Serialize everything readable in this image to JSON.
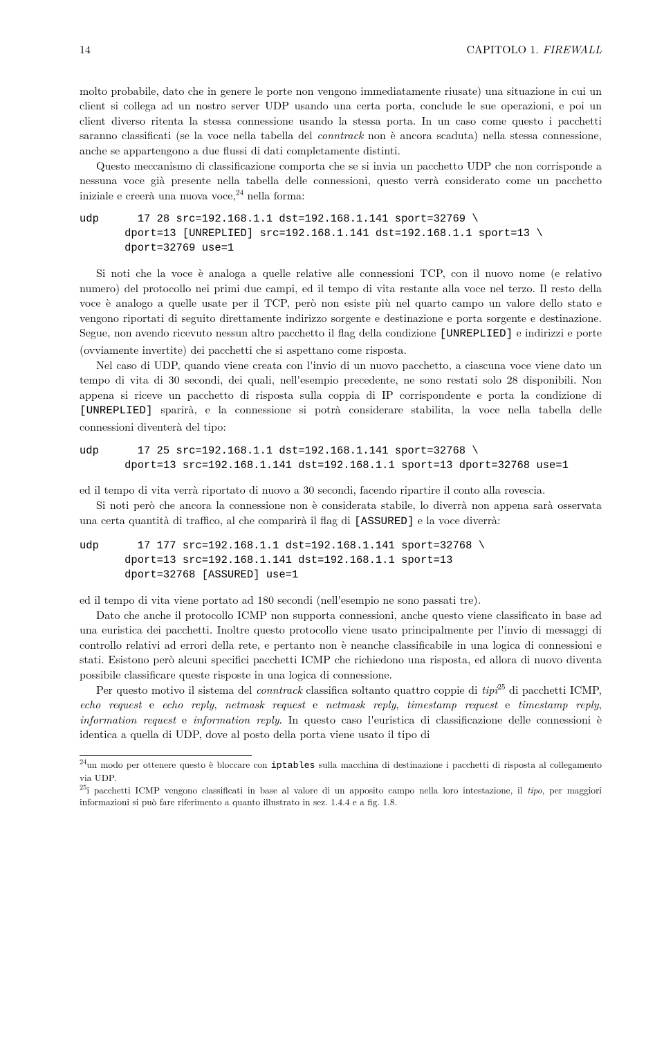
{
  "header": {
    "page_number": "14",
    "chapter_label": "CAPITOLO 1.",
    "chapter_title": "FIREWALL"
  },
  "paragraphs": {
    "p1a": "molto probabile, dato che in genere le porte non vengono immediatamente riusate) una situazione in cui un client si collega ad un nostro server UDP usando una certa porta, conclude le sue operazioni, e poi un client diverso ritenta la stessa connessione usando la stessa porta. In un caso come questo i pacchetti saranno classificati (se la voce nella tabella del ",
    "p1_em1": "conntrack",
    "p1b": " non è ancora scaduta) nella stessa connessione, anche se appartengono a due flussi di dati completamente distinti.",
    "p2a": "Questo meccanismo di classificazione comporta che se si invia un pacchetto UDP che non corrisponde a nessuna voce già presente nella tabella delle connessioni, questo verrà considerato come un pacchetto iniziale e creerà una nuova voce,",
    "p2_fn": "24",
    "p2b": " nella forma:",
    "code1": "udp      17 28 src=192.168.1.1 dst=192.168.1.141 sport=32769 \\\n       dport=13 [UNREPLIED] src=192.168.1.141 dst=192.168.1.1 sport=13 \\\n       dport=32769 use=1",
    "p3a": "Si noti che la voce è analoga a quelle relative alle connessioni TCP, con il nuovo nome (e relativo numero) del protocollo nei primi due campi, ed il tempo di vita restante alla voce nel terzo. Il resto della voce è analogo a quelle usate per il TCP, però non esiste più nel quarto campo un valore dello stato e vengono riportati di seguito direttamente indirizzo sorgente e destinazione e porta sorgente e destinazione. Segue, non avendo ricevuto nessun altro pacchetto il flag della condizione ",
    "p3_tt1": "[UNREPLIED]",
    "p3b": " e indirizzi e porte (ovviamente invertite) dei pacchetti che si aspettano come risposta.",
    "p4a": "Nel caso di UDP, quando viene creata con l'invio di un nuovo pacchetto, a ciascuna voce viene dato un tempo di vita di 30 secondi, dei quali, nell'esempio precedente, ne sono restati solo 28 disponibili. Non appena si riceve un pacchetto di risposta sulla coppia di IP corrispondente e porta la condizione di ",
    "p4_tt1": "[UNREPLIED]",
    "p4b": " sparirà, e la connessione si potrà considerare stabilita, la voce nella tabella delle connessioni diventerà del tipo:",
    "code2": "udp      17 25 src=192.168.1.1 dst=192.168.1.141 sport=32768 \\\n       dport=13 src=192.168.1.141 dst=192.168.1.1 sport=13 dport=32768 use=1",
    "p5": "ed il tempo di vita verrà riportato di nuovo a 30 secondi, facendo ripartire il conto alla rovescia.",
    "p6a": "Si noti però che ancora la connessione non è considerata stabile, lo diverrà non appena sarà osservata una certa quantità di traffico, al che comparirà il flag di ",
    "p6_tt1": "[ASSURED]",
    "p6b": " e la voce diverrà:",
    "code3": "udp      17 177 src=192.168.1.1 dst=192.168.1.141 sport=32768 \\\n       dport=13 src=192.168.1.141 dst=192.168.1.1 sport=13\n       dport=32768 [ASSURED] use=1",
    "p7": "ed il tempo di vita viene portato ad 180 secondi (nell'esempio ne sono passati tre).",
    "p8": "Dato che anche il protocollo ICMP non supporta connessioni, anche questo viene classificato in base ad una euristica dei pacchetti. Inoltre questo protocollo viene usato principalmente per l'invio di messaggi di controllo relativi ad errori della rete, e pertanto non è neanche classificabile in una logica di connessioni e stati. Esistono però alcuni specifici pacchetti ICMP che richiedono una risposta, ed allora di nuovo diventa possibile classificare queste risposte in una logica di connessione.",
    "p9a": "Per questo motivo il sistema del ",
    "p9_em1": "conntrack",
    "p9b": " classifica soltanto quattro coppie di ",
    "p9_em2": "tipi",
    "p9_fn": "25",
    "p9c": " di pacchetti ICMP, ",
    "p9_em3": "echo request",
    "p9d": " e ",
    "p9_em4": "echo reply",
    "p9e": ", ",
    "p9_em5": "netmask request",
    "p9f": " e ",
    "p9_em6": "netmask reply",
    "p9g": ", ",
    "p9_em7": "timestamp request",
    "p9h": " e ",
    "p9_em8": "timestamp reply",
    "p9i": ", ",
    "p9_em9": "information request",
    "p9j": " e ",
    "p9_em10": "information reply",
    "p9k": ". In questo caso l'euristica di classificazione delle connessioni è identica a quella di UDP, dove al posto della porta viene usato il tipo di"
  },
  "footnotes": {
    "fn24_num": "24",
    "fn24a": "un modo per ottenere questo è bloccare con ",
    "fn24_tt": "iptables",
    "fn24b": " sulla macchina di destinazione i pacchetti di risposta al collegamento via UDP.",
    "fn25_num": "25",
    "fn25a": "i pacchetti ICMP vengono classificati in base al valore di un apposito campo nella loro intestazione, il ",
    "fn25_em": "tipo",
    "fn25b": ", per maggiori informazioni si può fare riferimento a quanto illustrato in sez. 1.4.4 e a fig. 1.8."
  }
}
